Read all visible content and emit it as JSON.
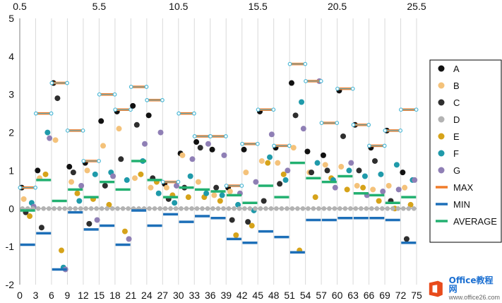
{
  "chart_data": {
    "type": "scatter",
    "title": "",
    "x_bottom": {
      "range": [
        0,
        75
      ],
      "ticks": [
        0,
        3,
        6,
        9,
        12,
        15,
        18,
        21,
        24,
        27,
        30,
        33,
        36,
        39,
        42,
        45,
        48,
        51,
        54,
        57,
        60,
        63,
        66,
        69,
        72,
        75
      ]
    },
    "x_top": {
      "range": [
        0.5,
        25.5
      ],
      "ticks": [
        0.5,
        5.5,
        10.5,
        15.5,
        20.5,
        25.5
      ],
      "tick_labels": [
        "0.5",
        "5.5",
        "10.5",
        "15.5",
        "20.5",
        "25.5"
      ]
    },
    "y": {
      "range": [
        -2,
        5
      ],
      "ticks": [
        -2,
        -1,
        0,
        1,
        2,
        3,
        4,
        5
      ]
    },
    "grid": "vertical",
    "legend_position": "right",
    "groups": [
      {
        "max": 0.55,
        "min": -0.95,
        "avg": -0.05,
        "A": 0.55,
        "B": 0.25,
        "C": -0.1,
        "D": 0.0,
        "E": -0.2,
        "F": 0.15,
        "G": 0.05
      },
      {
        "max": 2.5,
        "min": -0.65,
        "avg": 0.75,
        "A": 1.0,
        "B": 0.8,
        "C": -0.5,
        "D": 0.0,
        "E": 0.9,
        "F": 2.0,
        "G": 1.85
      },
      {
        "max": 3.3,
        "min": -1.6,
        "avg": 0.2,
        "A": 3.3,
        "B": 1.8,
        "C": 2.9,
        "D": 0.0,
        "E": -1.1,
        "F": -1.55,
        "G": -1.6
      },
      {
        "max": 2.05,
        "min": -0.1,
        "avg": 0.5,
        "A": 1.1,
        "B": 0.7,
        "C": 0.95,
        "D": 0.0,
        "E": 0.4,
        "F": 0.2,
        "G": 0.6
      },
      {
        "max": 1.25,
        "min": -0.55,
        "avg": 0.3,
        "A": 1.2,
        "B": 1.0,
        "C": -0.4,
        "D": 0.0,
        "E": 0.25,
        "F": 0.9,
        "G": -0.3
      },
      {
        "max": 3.0,
        "min": -0.45,
        "avg": 0.7,
        "A": 2.3,
        "B": 1.65,
        "C": 0.6,
        "D": 0.0,
        "E": 0.1,
        "F": 0.95,
        "G": 0.85
      },
      {
        "max": 2.6,
        "min": -0.95,
        "avg": 0.5,
        "A": 2.55,
        "B": 2.1,
        "C": 1.3,
        "D": 0.0,
        "E": -0.6,
        "F": 0.75,
        "G": -0.8
      },
      {
        "max": 3.2,
        "min": -0.05,
        "avg": 1.25,
        "A": 2.7,
        "B": 0.8,
        "C": 2.2,
        "D": 0.0,
        "E": 0.9,
        "F": 1.25,
        "G": 1.7
      },
      {
        "max": 2.85,
        "min": -0.45,
        "avg": 0.75,
        "A": 2.45,
        "B": 0.55,
        "C": 0.8,
        "D": 0.0,
        "E": 0.7,
        "F": 0.4,
        "G": 2.0
      },
      {
        "max": 0.7,
        "min": -0.15,
        "avg": 0.3,
        "A": 0.65,
        "B": 0.55,
        "C": 0.25,
        "D": 0.0,
        "E": 0.35,
        "F": 0.15,
        "G": 0.6
      },
      {
        "max": 2.5,
        "min": -0.35,
        "avg": 0.55,
        "A": 1.45,
        "B": 1.4,
        "C": 0.55,
        "D": 0.0,
        "E": 0.3,
        "F": 0.85,
        "G": 1.3
      },
      {
        "max": 1.9,
        "min": -0.2,
        "avg": 0.5,
        "A": 1.75,
        "B": 0.7,
        "C": 1.6,
        "D": 0.0,
        "E": 0.3,
        "F": 0.4,
        "G": 1.7
      },
      {
        "max": 1.9,
        "min": -0.25,
        "avg": 0.45,
        "A": 1.55,
        "B": 0.35,
        "C": 0.55,
        "D": 0.0,
        "E": 0.2,
        "F": 0.35,
        "G": 1.4
      },
      {
        "max": 0.6,
        "min": -0.8,
        "avg": 0.35,
        "A": 0.55,
        "B": 0.45,
        "C": -0.3,
        "D": 0.0,
        "E": -0.7,
        "F": 0.1,
        "G": 0.4
      },
      {
        "max": 1.7,
        "min": -0.9,
        "avg": 0.15,
        "A": 1.55,
        "B": 0.95,
        "C": -0.35,
        "D": 0.0,
        "E": -0.45,
        "F": -0.05,
        "G": 0.7
      },
      {
        "max": 2.6,
        "min": -0.6,
        "avg": 0.6,
        "A": 2.55,
        "B": 1.25,
        "C": 0.2,
        "D": 0.0,
        "E": 1.2,
        "F": 1.35,
        "G": 1.95
      },
      {
        "max": 1.65,
        "min": -0.75,
        "avg": 0.3,
        "A": 1.6,
        "B": 1.2,
        "C": 0.65,
        "D": 0.0,
        "E": 0.9,
        "F": 0.75,
        "G": 1.0
      },
      {
        "max": 3.8,
        "min": -1.15,
        "avg": 1.2,
        "A": 3.3,
        "B": 1.6,
        "C": 2.45,
        "D": 0.0,
        "E": -1.1,
        "F": 2.8,
        "G": 2.1
      },
      {
        "max": 3.35,
        "min": -0.3,
        "avg": 0.8,
        "A": 1.5,
        "B": 0.95,
        "C": 0.95,
        "D": 0.0,
        "E": 0.3,
        "F": 1.2,
        "G": 3.35
      },
      {
        "max": 2.25,
        "min": -0.3,
        "avg": 0.7,
        "A": 1.4,
        "B": 1.15,
        "C": 1.0,
        "D": 0.0,
        "E": 0.8,
        "F": 0.75,
        "G": 0.55
      },
      {
        "max": 3.15,
        "min": -0.25,
        "avg": 0.85,
        "A": 3.1,
        "B": 1.1,
        "C": 1.9,
        "D": 0.0,
        "E": 0.5,
        "F": 1.0,
        "G": 1.2
      },
      {
        "max": 2.2,
        "min": -0.25,
        "avg": 0.4,
        "A": 2.2,
        "B": 0.6,
        "C": 1.0,
        "D": 0.0,
        "E": 0.55,
        "F": 0.85,
        "G": 0.35
      },
      {
        "max": 1.65,
        "min": -0.25,
        "avg": 0.35,
        "A": 1.6,
        "B": 0.5,
        "C": 1.25,
        "D": 0.0,
        "E": 0.2,
        "F": 0.9,
        "G": 0.45
      },
      {
        "max": 2.05,
        "min": -0.3,
        "avg": 0.15,
        "A": 2.05,
        "B": 0.6,
        "C": 0.2,
        "D": 0.0,
        "E": 0.0,
        "F": 1.15,
        "G": 0.5
      },
      {
        "max": 2.6,
        "min": -0.9,
        "avg": 0.3,
        "A": 0.95,
        "B": 0.55,
        "C": -0.8,
        "D": 0.0,
        "E": 0.1,
        "F": 0.75,
        "G": 0.75
      }
    ],
    "series": [
      {
        "name": "A",
        "key": "A",
        "marker": "dot",
        "color": "#111111"
      },
      {
        "name": "B",
        "key": "B",
        "marker": "dot",
        "color": "#f4c27a"
      },
      {
        "name": "C",
        "key": "C",
        "marker": "dot",
        "color": "#2e2e2e"
      },
      {
        "name": "D",
        "key": "D",
        "marker": "dot",
        "color": "#b3b3b3"
      },
      {
        "name": "E",
        "key": "E",
        "marker": "dot",
        "color": "#d6a31a"
      },
      {
        "name": "F",
        "key": "F",
        "marker": "dot",
        "color": "#1f9aaa"
      },
      {
        "name": "G",
        "key": "G",
        "marker": "dot",
        "color": "#8f7fb5"
      },
      {
        "name": "MAX",
        "key": "max",
        "marker": "dash",
        "color": "#f07c2a"
      },
      {
        "name": "MIN",
        "key": "min",
        "marker": "dash",
        "color": "#1d6fb8"
      },
      {
        "name": "AVERAGE",
        "key": "avg",
        "marker": "dash",
        "color": "#22b070"
      }
    ],
    "highlight_color": "#4cb8d6"
  },
  "watermark": {
    "title": "Office教程网",
    "url": "www.office26.com",
    "icon": "office-logo-icon",
    "icon_color": "#e84b1c"
  }
}
